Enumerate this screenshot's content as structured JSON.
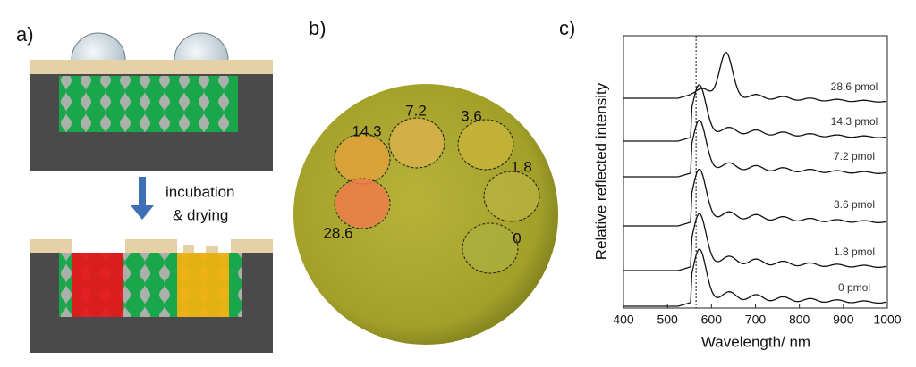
{
  "panel_a": {
    "label": "a)",
    "step_text": [
      "incubation",
      "& drying"
    ]
  },
  "panel_b": {
    "label": "b)",
    "spots": [
      "14.3",
      "7.2",
      "3.6",
      "1.8",
      "28.6",
      "0"
    ]
  },
  "panel_c": {
    "label": "c)",
    "y_label": "Relative reflected intensity",
    "x_label": "Wavelength/ nm",
    "xlim": [
      400,
      1000
    ],
    "xticks": [
      400,
      500,
      600,
      700,
      800,
      900,
      1000
    ],
    "reference_line": 565,
    "curve_labels": [
      "28.6 pmol",
      "14.3 pmol",
      "7.2 pmol",
      "3.6 pmol",
      "1.8 pmol",
      "0 pmol"
    ]
  }
}
